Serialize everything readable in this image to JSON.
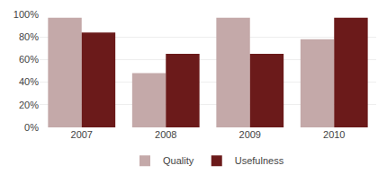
{
  "chart_data": {
    "type": "bar",
    "categories": [
      "2007",
      "2008",
      "2009",
      "2010"
    ],
    "series": [
      {
        "name": "Quality",
        "color": "#c4a9a9",
        "values": [
          0.97,
          0.48,
          0.97,
          0.78
        ]
      },
      {
        "name": "Usefulness",
        "color": "#6b1a1a",
        "values": [
          0.84,
          0.65,
          0.65,
          0.97
        ]
      }
    ],
    "ylim": [
      0,
      1.0
    ],
    "yticks": [
      {
        "value": 0.0,
        "label": "0%"
      },
      {
        "value": 0.2,
        "label": "20%"
      },
      {
        "value": 0.4,
        "label": "40%"
      },
      {
        "value": 0.6,
        "label": "60%"
      },
      {
        "value": 0.8,
        "label": "80%"
      },
      {
        "value": 1.0,
        "label": "100%"
      }
    ],
    "grid": true,
    "legend": "bottom"
  }
}
